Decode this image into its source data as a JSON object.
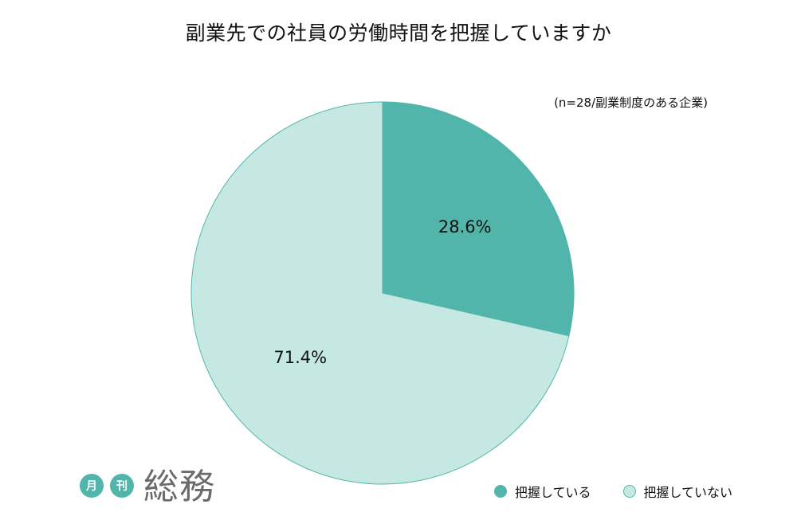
{
  "chart_data": {
    "type": "pie",
    "title": "副業先での社員の労働時間を把握していますか",
    "subtitle": "(n=28/副業制度のある企業)",
    "categories": [
      "把握している",
      "把握していない"
    ],
    "values": [
      28.6,
      71.4
    ],
    "labels": [
      "28.6%",
      "71.4%"
    ],
    "colors": [
      "#52b5ab",
      "#c6e8e3"
    ],
    "legend_position": "bottom-right"
  },
  "logo": {
    "badge1": "月",
    "badge2": "刊",
    "word": "総務",
    "color": "#52b5ab"
  }
}
